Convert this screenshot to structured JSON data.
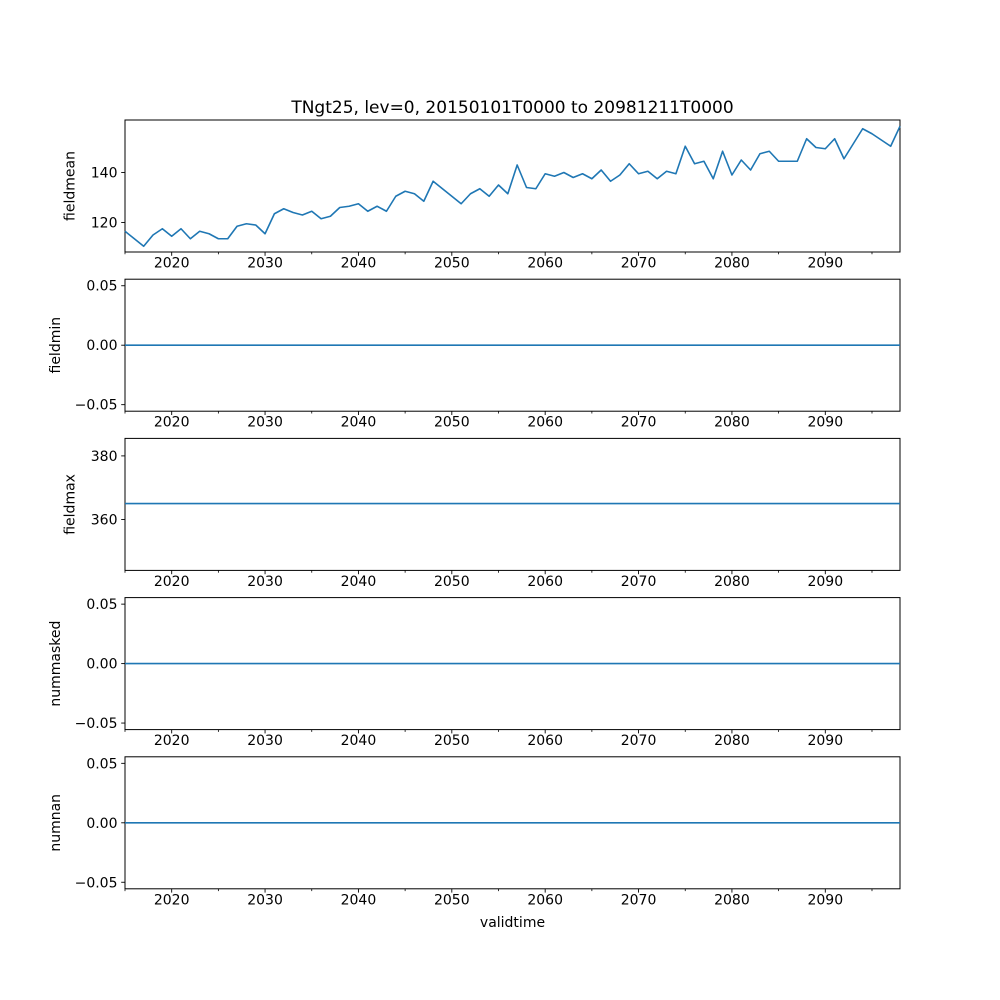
{
  "figure": {
    "title": "TNgt25, lev=0, 20150101T0000 to 20981211T0000",
    "xlabel": "validtime",
    "background_color": "#ffffff",
    "line_color": "#1f77b4",
    "axis_color": "#000000",
    "text_color": "#000000"
  },
  "x_axis": {
    "xlim": [
      2015,
      2098
    ],
    "major_ticks": [
      2020,
      2030,
      2040,
      2050,
      2060,
      2070,
      2080,
      2090
    ],
    "major_tick_labels": [
      "2020",
      "2030",
      "2040",
      "2050",
      "2060",
      "2070",
      "2080",
      "2090"
    ],
    "minor_ticks": [
      2015,
      2025,
      2035,
      2045,
      2055,
      2065,
      2075,
      2085,
      2095
    ]
  },
  "chart_data": [
    {
      "type": "line",
      "name": "fieldmean",
      "ylabel": "fieldmean",
      "ylim": [
        108.2,
        161.0
      ],
      "yticks": [
        {
          "value": 120,
          "label": "120"
        },
        {
          "value": 140,
          "label": "140"
        }
      ],
      "x_start": 2015,
      "x_step": 1,
      "values": [
        116.5,
        113.5,
        110.5,
        115.0,
        117.5,
        114.5,
        117.5,
        113.5,
        116.5,
        115.5,
        113.5,
        113.5,
        118.5,
        119.5,
        119.0,
        115.5,
        123.5,
        125.5,
        124.0,
        123.0,
        124.5,
        121.5,
        122.5,
        126.0,
        126.5,
        127.5,
        124.5,
        126.5,
        124.5,
        130.5,
        132.5,
        131.5,
        128.5,
        136.5,
        133.5,
        130.5,
        127.5,
        131.5,
        133.5,
        130.5,
        135.0,
        131.5,
        143.0,
        134.0,
        133.5,
        139.5,
        138.5,
        140.0,
        138.0,
        139.5,
        137.5,
        141.0,
        136.5,
        139.0,
        143.5,
        139.5,
        140.5,
        137.5,
        140.5,
        139.5,
        150.5,
        143.5,
        144.5,
        137.5,
        148.5,
        139.0,
        145.0,
        141.0,
        147.5,
        148.5,
        144.5,
        144.5,
        144.5,
        153.5,
        150.0,
        149.5,
        153.5,
        145.5,
        151.5,
        157.5,
        155.5,
        153.0,
        150.5,
        158.5
      ]
    },
    {
      "type": "line",
      "name": "fieldmin",
      "ylabel": "fieldmin",
      "ylim": [
        -0.0555,
        0.0555
      ],
      "yticks": [
        {
          "value": -0.05,
          "label": "−0.05"
        },
        {
          "value": 0.0,
          "label": "0.00"
        },
        {
          "value": 0.05,
          "label": "0.05"
        }
      ],
      "constant_value": 0.0
    },
    {
      "type": "line",
      "name": "fieldmax",
      "ylabel": "fieldmax",
      "ylim": [
        344.0,
        385.5
      ],
      "yticks": [
        {
          "value": 360,
          "label": "360"
        },
        {
          "value": 380,
          "label": "380"
        }
      ],
      "constant_value": 365.0
    },
    {
      "type": "line",
      "name": "nummasked",
      "ylabel": "nummasked",
      "ylim": [
        -0.0555,
        0.0555
      ],
      "yticks": [
        {
          "value": -0.05,
          "label": "−0.05"
        },
        {
          "value": 0.0,
          "label": "0.00"
        },
        {
          "value": 0.05,
          "label": "0.05"
        }
      ],
      "constant_value": 0.0
    },
    {
      "type": "line",
      "name": "numnan",
      "ylabel": "numnan",
      "ylim": [
        -0.0555,
        0.0555
      ],
      "yticks": [
        {
          "value": -0.05,
          "label": "−0.05"
        },
        {
          "value": 0.0,
          "label": "0.00"
        },
        {
          "value": 0.05,
          "label": "0.05"
        }
      ],
      "constant_value": 0.0
    }
  ]
}
